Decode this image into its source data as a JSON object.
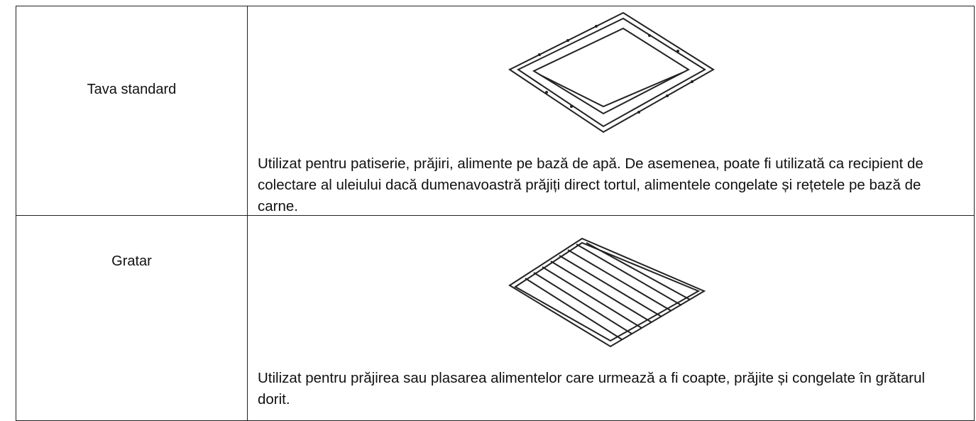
{
  "table": {
    "rows": [
      {
        "name": "Tava standard",
        "description": "Utilizat pentru patiserie, prăjiri, alimente pe bază de apă. De asemenea, poate fi utilizată ca recipient de colectare al uleiului dacă dumenavoastră prăjiți direct tortul, alimentele congelate și rețetele pe bază de carne."
      },
      {
        "name": "Gratar",
        "description": "Utilizat pentru prăjirea sau plasarea alimentelor care urmează a fi coapte, prăjite și congelate în grătarul dorit."
      }
    ]
  }
}
